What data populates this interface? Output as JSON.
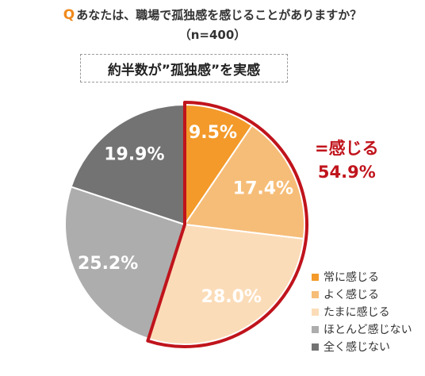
{
  "header": {
    "q_mark": "Q",
    "question": "あなたは、職場で孤独感を感じることがありますか？",
    "sample": "（n=400）"
  },
  "callout": {
    "text": "約半数が”孤独感”を実感"
  },
  "highlight": {
    "label": "=感じる",
    "value": "54.9%"
  },
  "colors": {
    "highlight_outline": "#c0141c",
    "highlight_text": "#c0141c",
    "q_mark": "#f08a1c"
  },
  "chart_data": {
    "type": "pie",
    "title": "",
    "start": "12 o'clock",
    "direction": "clockwise",
    "slices": [
      {
        "label": "常に感じる",
        "value": 9.5,
        "display": "9.5%",
        "color": "#f39a2a",
        "label_color": "#ffffff"
      },
      {
        "label": "よく感じる",
        "value": 17.4,
        "display": "17.4%",
        "color": "#f6bd78",
        "label_color": "#ffffff"
      },
      {
        "label": "たまに感じる",
        "value": 28.0,
        "display": "28.0%",
        "color": "#fbdcb8",
        "label_color": "#ffffff"
      },
      {
        "label": "ほとんど感じない",
        "value": 25.2,
        "display": "25.2%",
        "color": "#adadad",
        "label_color": "#ffffff"
      },
      {
        "label": "全く感じない",
        "value": 19.9,
        "display": "19.9%",
        "color": "#737373",
        "label_color": "#ffffff"
      }
    ],
    "highlighted_group": {
      "slices": [
        "常に感じる",
        "よく感じる",
        "たまに感じる"
      ],
      "total": 54.9
    },
    "legend": {
      "position": "bottom-right"
    }
  }
}
